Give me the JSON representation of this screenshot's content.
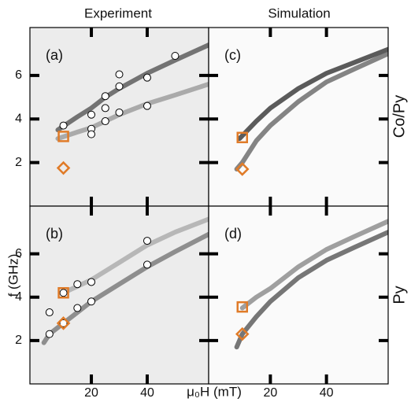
{
  "column_titles": [
    "Experiment",
    "Simulation"
  ],
  "row_labels": [
    "Co/Py",
    "Py"
  ],
  "ylabel": "f (GHz)",
  "xlabel": "μ₀H (mT)",
  "chart_data": [
    {
      "type": "scatter",
      "title": "(a)",
      "background": "#ececec",
      "xlim": [
        -2,
        62
      ],
      "ylim": [
        0,
        8.2
      ],
      "xticks": [
        20,
        40
      ],
      "yticks": [
        2,
        4,
        6
      ],
      "show_xtick_labels": false,
      "show_ytick_labels": true,
      "bands": [
        {
          "color": "#555555",
          "x": [
            8,
            15,
            20,
            25,
            30,
            40,
            50,
            62
          ],
          "values": [
            3.5,
            4.1,
            4.5,
            5.0,
            5.4,
            6.1,
            6.7,
            7.4
          ]
        },
        {
          "color": "#9a9a9a",
          "x": [
            8,
            15,
            20,
            30,
            40,
            50,
            62
          ],
          "values": [
            3.1,
            3.4,
            3.6,
            4.2,
            4.7,
            5.1,
            5.6
          ]
        }
      ],
      "series": [
        {
          "marker": "circle",
          "color": "#ffffff",
          "x": [
            10,
            20,
            20,
            20,
            25,
            25,
            25,
            30,
            30,
            30,
            40,
            40,
            50
          ],
          "values": [
            3.7,
            3.55,
            3.3,
            4.2,
            3.9,
            4.5,
            5.05,
            4.3,
            5.5,
            6.05,
            4.6,
            5.9,
            6.9
          ]
        },
        {
          "marker": "square",
          "color": "#e07b28",
          "x": [
            10
          ],
          "values": [
            3.2
          ]
        },
        {
          "marker": "diamond",
          "color": "#e07b28",
          "x": [
            10
          ],
          "values": [
            1.75
          ]
        }
      ]
    },
    {
      "type": "scatter",
      "title": "(c)",
      "background": "#fafafa",
      "xlim": [
        -2,
        62
      ],
      "ylim": [
        0,
        8.2
      ],
      "xticks": [
        20,
        40
      ],
      "yticks": [
        2,
        4,
        6
      ],
      "show_xtick_labels": false,
      "show_ytick_labels": false,
      "bands": [
        {
          "color": "#333333",
          "x": [
            9,
            15,
            20,
            30,
            40,
            50,
            62
          ],
          "values": [
            3.1,
            3.9,
            4.5,
            5.4,
            6.1,
            6.6,
            7.2
          ]
        },
        {
          "color": "#666666",
          "x": [
            8,
            10,
            15,
            20,
            30,
            40,
            50,
            62
          ],
          "values": [
            1.7,
            2.0,
            3.0,
            3.7,
            4.8,
            5.7,
            6.3,
            7.0
          ]
        }
      ],
      "series": [
        {
          "marker": "square",
          "color": "#e07b28",
          "x": [
            10
          ],
          "values": [
            3.15
          ]
        },
        {
          "marker": "diamond",
          "color": "#e07b28",
          "x": [
            10
          ],
          "values": [
            1.7
          ]
        }
      ]
    },
    {
      "type": "scatter",
      "title": "(b)",
      "background": "#ececec",
      "xlim": [
        -2,
        62
      ],
      "ylim": [
        0,
        8.2
      ],
      "xticks": [
        20,
        40
      ],
      "yticks": [
        2,
        4,
        6
      ],
      "show_xtick_labels": true,
      "show_ytick_labels": true,
      "bands": [
        {
          "color": "#777777",
          "x": [
            3,
            5,
            10,
            20,
            30,
            40,
            50,
            62
          ],
          "values": [
            1.9,
            2.3,
            2.8,
            3.8,
            4.6,
            5.4,
            6.1,
            6.9
          ]
        },
        {
          "color": "#aaaaaa",
          "x": [
            10,
            20,
            30,
            40,
            50,
            62
          ],
          "values": [
            4.2,
            4.8,
            5.6,
            6.4,
            7.0,
            7.6
          ]
        }
      ],
      "series": [
        {
          "marker": "circle",
          "color": "#ffffff",
          "x": [
            5,
            5,
            10,
            10,
            15,
            15,
            20,
            20,
            40,
            40
          ],
          "values": [
            2.3,
            3.3,
            2.8,
            4.2,
            3.5,
            4.6,
            3.8,
            4.7,
            5.5,
            6.6
          ]
        },
        {
          "marker": "square",
          "color": "#e07b28",
          "x": [
            10
          ],
          "values": [
            4.2
          ]
        },
        {
          "marker": "diamond",
          "color": "#e07b28",
          "x": [
            10
          ],
          "values": [
            2.8
          ]
        }
      ]
    },
    {
      "type": "scatter",
      "title": "(d)",
      "background": "#fafafa",
      "xlim": [
        -2,
        62
      ],
      "ylim": [
        0,
        8.2
      ],
      "xticks": [
        20,
        40
      ],
      "yticks": [
        2,
        4,
        6
      ],
      "show_xtick_labels": true,
      "show_ytick_labels": false,
      "bands": [
        {
          "color": "#555555",
          "x": [
            8,
            10,
            15,
            20,
            30,
            40,
            50,
            62
          ],
          "values": [
            1.7,
            2.3,
            3.1,
            3.8,
            4.9,
            5.7,
            6.3,
            7.0
          ]
        },
        {
          "color": "#888888",
          "x": [
            10,
            15,
            20,
            30,
            40,
            50,
            62
          ],
          "values": [
            3.5,
            4.0,
            4.4,
            5.4,
            6.2,
            6.8,
            7.5
          ]
        }
      ],
      "series": [
        {
          "marker": "square",
          "color": "#e07b28",
          "x": [
            10
          ],
          "values": [
            3.55
          ]
        },
        {
          "marker": "diamond",
          "color": "#e07b28",
          "x": [
            10
          ],
          "values": [
            2.3
          ]
        }
      ]
    }
  ]
}
